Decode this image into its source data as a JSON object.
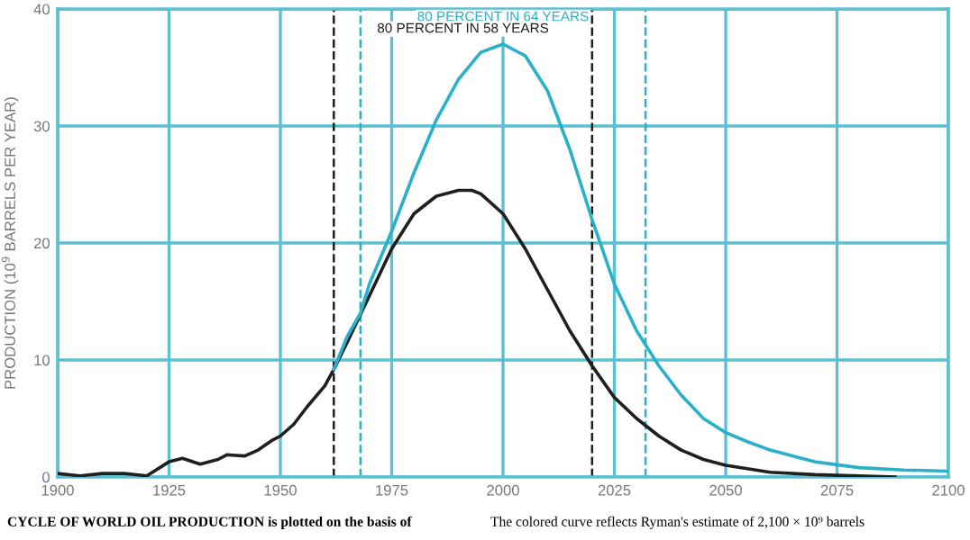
{
  "chart_data": {
    "type": "line",
    "ylabel": "PRODUCTION (10$^{9}$ BARRELS PER YEAR)",
    "xlim": [
      1900,
      2100
    ],
    "xticks": [
      1900,
      1925,
      1950,
      1975,
      2000,
      2025,
      2050,
      2075,
      2100
    ],
    "ylim": [
      0,
      40
    ],
    "yticks": [
      0,
      10,
      20,
      30,
      40
    ],
    "grid": true,
    "marker": "none",
    "line_style": "solid",
    "series": [
      {
        "color": "#1f1f1f",
        "x": [
          1900,
          1905,
          1910,
          1915,
          1920,
          1925,
          1928,
          1932,
          1936,
          1938,
          1942,
          1945,
          1948,
          1950,
          1953,
          1956,
          1960,
          1962,
          1965,
          1970,
          1975,
          1980,
          1985,
          1990,
          1993,
          1995,
          2000,
          2005,
          2010,
          2015,
          2020,
          2025,
          2030,
          2035,
          2040,
          2045,
          2050,
          2060,
          2070,
          2088
        ],
        "values": [
          0.3,
          0.1,
          0.3,
          0.3,
          0.1,
          1.3,
          1.6,
          1.1,
          1.5,
          1.9,
          1.8,
          2.3,
          3.1,
          3.5,
          4.5,
          6.0,
          7.8,
          9.2,
          11.5,
          15.5,
          19.5,
          22.5,
          24.0,
          24.5,
          24.5,
          24.2,
          22.5,
          19.5,
          16,
          12.5,
          9.5,
          6.8,
          5.0,
          3.5,
          2.3,
          1.5,
          1.0,
          0.4,
          0.2,
          0.0
        ]
      },
      {
        "color": "#2ab0c8",
        "x": [
          1962,
          1965,
          1968,
          1970,
          1975,
          1980,
          1985,
          1990,
          1995,
          2000,
          2005,
          2010,
          2015,
          2020,
          2025,
          2030,
          2035,
          2040,
          2045,
          2050,
          2055,
          2060,
          2070,
          2080,
          2090,
          2100
        ],
        "values": [
          9.2,
          12,
          14,
          16.5,
          21,
          26,
          30.5,
          34,
          36.3,
          37,
          36,
          33,
          28,
          22,
          16.5,
          12.5,
          9.5,
          7,
          5,
          3.8,
          3.0,
          2.3,
          1.3,
          0.8,
          0.6,
          0.5
        ]
      }
    ],
    "ref_lines": [
      {
        "axis": "x",
        "value": 1962,
        "color": "#1f1f1f",
        "line_style": "dashed"
      },
      {
        "axis": "x",
        "value": 2020,
        "color": "#1f1f1f",
        "line_style": "dashed"
      },
      {
        "axis": "x",
        "value": 1968,
        "color": "#2ab0c8",
        "line_style": "dashed"
      },
      {
        "axis": "x",
        "value": 2032,
        "color": "#2ab0c8",
        "line_style": "dashed"
      }
    ],
    "annotations": [
      "80 PERCENT IN 64 YEARS",
      "80 PERCENT IN 58 YEARS",
      "CYCLE OF WORLD OIL PRODUCTION is plotted on the basis of",
      "The colored curve reflects Ryman's estimate of 2,100 × 10⁹ barrels"
    ]
  }
}
